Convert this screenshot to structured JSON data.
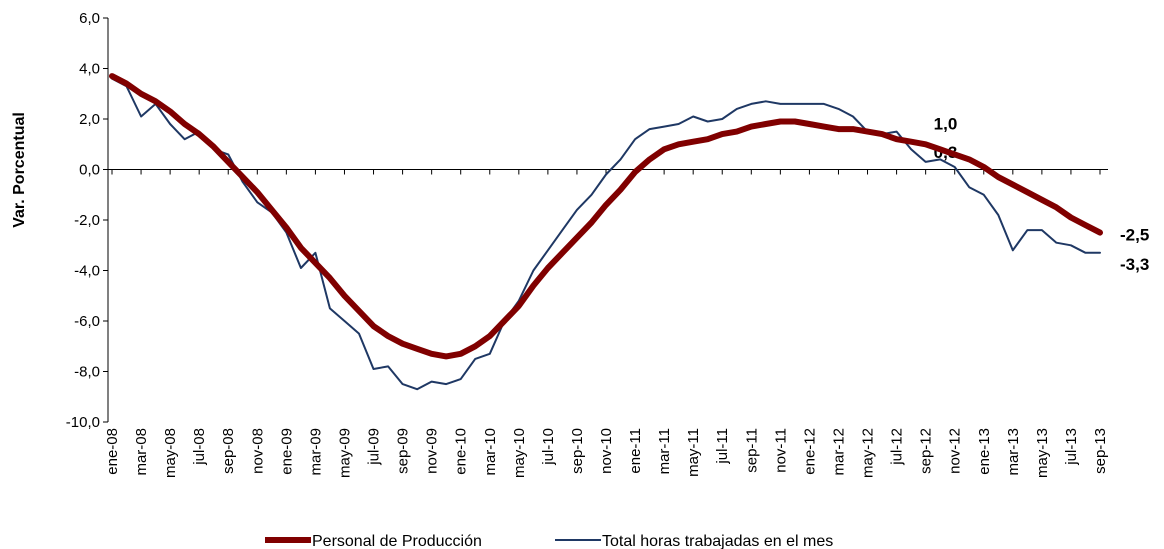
{
  "chart_data": {
    "type": "line",
    "y_label": "Var. Porcentual",
    "categories": [
      "ene-08",
      null,
      "mar-08",
      null,
      "may-08",
      null,
      "jul-08",
      null,
      "sep-08",
      null,
      "nov-08",
      null,
      "ene-09",
      null,
      "mar-09",
      null,
      "may-09",
      null,
      "jul-09",
      null,
      "sep-09",
      null,
      "nov-09",
      null,
      "ene-10",
      null,
      "mar-10",
      null,
      "may-10",
      null,
      "jul-10",
      null,
      "sep-10",
      null,
      "nov-10",
      null,
      "ene-11",
      null,
      "mar-11",
      null,
      "may-11",
      null,
      "jul-11",
      null,
      "sep-11",
      null,
      "nov-11",
      null,
      "ene-12",
      null,
      "mar-12",
      null,
      "may-12",
      null,
      "jul-12",
      null,
      "sep-12",
      null,
      "nov-12",
      null,
      "ene-13",
      null,
      "mar-13",
      null,
      "may-13",
      null,
      "jul-13",
      null,
      "sep-13"
    ],
    "series": [
      {
        "name": "Personal de Producción",
        "color": "#800000",
        "label_color": "#c0392b",
        "width": 6,
        "values": [
          3.7,
          3.4,
          3.0,
          2.7,
          2.3,
          1.8,
          1.4,
          0.9,
          0.3,
          -0.3,
          -0.9,
          -1.6,
          -2.3,
          -3.1,
          -3.7,
          -4.3,
          -5.0,
          -5.6,
          -6.2,
          -6.6,
          -6.9,
          -7.1,
          -7.3,
          -7.4,
          -7.3,
          -7.0,
          -6.6,
          -6.0,
          -5.4,
          -4.6,
          -3.9,
          -3.3,
          -2.7,
          -2.1,
          -1.4,
          -0.8,
          -0.1,
          0.4,
          0.8,
          1.0,
          1.1,
          1.2,
          1.4,
          1.5,
          1.7,
          1.8,
          1.9,
          1.9,
          1.8,
          1.7,
          1.6,
          1.6,
          1.5,
          1.4,
          1.2,
          1.1,
          1.0,
          0.8,
          0.6,
          0.4,
          0.1,
          -0.3,
          -0.6,
          -0.9,
          -1.2,
          -1.5,
          -1.9,
          -2.2,
          -2.5
        ],
        "value_labels": [
          null,
          null,
          null,
          null,
          null,
          null,
          null,
          null,
          null,
          null,
          null,
          null,
          null,
          null,
          null,
          null,
          null,
          null,
          null,
          null,
          null,
          null,
          null,
          null,
          null,
          null,
          null,
          null,
          null,
          null,
          null,
          null,
          null,
          null,
          null,
          null,
          null,
          null,
          null,
          null,
          null,
          null,
          null,
          null,
          null,
          null,
          null,
          null,
          null,
          null,
          null,
          null,
          null,
          null,
          null,
          null,
          "1,0",
          null,
          null,
          null,
          null,
          null,
          null,
          null,
          null,
          null,
          null,
          null,
          "-2,5"
        ]
      },
      {
        "name": "Total horas trabajadas en el mes",
        "color": "#1f3864",
        "label_color": "#1f3864",
        "width": 2,
        "values": [
          3.6,
          3.3,
          2.1,
          2.6,
          1.8,
          1.2,
          1.5,
          0.8,
          0.6,
          -0.5,
          -1.3,
          -1.7,
          -2.5,
          -3.9,
          -3.3,
          -5.5,
          -6.0,
          -6.5,
          -7.9,
          -7.8,
          -8.5,
          -8.7,
          -8.4,
          -8.5,
          -8.3,
          -7.5,
          -7.3,
          -6.0,
          -5.2,
          -4.0,
          -3.2,
          -2.4,
          -1.6,
          -1.0,
          -0.2,
          0.4,
          1.2,
          1.6,
          1.7,
          1.8,
          2.1,
          1.9,
          2.0,
          2.4,
          2.6,
          2.7,
          2.6,
          2.6,
          2.6,
          2.6,
          2.4,
          2.1,
          1.5,
          1.4,
          1.5,
          0.8,
          0.3,
          0.4,
          0.1,
          -0.7,
          -1.0,
          -1.8,
          -3.2,
          -2.4,
          -2.4,
          -2.9,
          -3.0,
          -3.3,
          -3.3
        ],
        "value_labels": [
          null,
          null,
          null,
          null,
          null,
          null,
          null,
          null,
          null,
          null,
          null,
          null,
          null,
          null,
          null,
          null,
          null,
          null,
          null,
          null,
          null,
          null,
          null,
          null,
          null,
          null,
          null,
          null,
          null,
          null,
          null,
          null,
          null,
          null,
          null,
          null,
          null,
          null,
          null,
          null,
          null,
          null,
          null,
          null,
          null,
          null,
          null,
          null,
          null,
          null,
          null,
          null,
          null,
          null,
          null,
          null,
          "0,3",
          null,
          null,
          null,
          null,
          null,
          null,
          null,
          null,
          null,
          null,
          null,
          "-3,3"
        ]
      }
    ],
    "ylim": [
      -10,
      6
    ],
    "yticks": [
      {
        "value": -10,
        "label": "-10,0"
      },
      {
        "value": -8,
        "label": "-8,0"
      },
      {
        "value": -6,
        "label": "-6,0"
      },
      {
        "value": -4,
        "label": "-4,0"
      },
      {
        "value": -2,
        "label": "-2,0"
      },
      {
        "value": 0,
        "label": "0,0"
      },
      {
        "value": 2,
        "label": "2,0"
      },
      {
        "value": 4,
        "label": "4,0"
      },
      {
        "value": 6,
        "label": "6,0"
      }
    ],
    "grid": false,
    "legend": "bottom"
  }
}
